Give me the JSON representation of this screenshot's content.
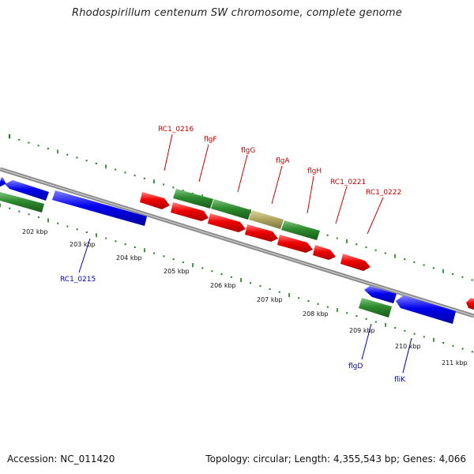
{
  "title": "Rhodospirillum centenum SW chromosome, complete genome",
  "footer": {
    "accession": "Accession: NC_011420",
    "summary": "Topology: circular; Length: 4,355,543 bp; Genes: 4,066"
  },
  "colors": {
    "forward_label": "#cc0000",
    "reverse_label": "#0000bb",
    "gene_red": "#ee0000",
    "gene_green": "#2d8a2d",
    "gene_blue": "#0000ee",
    "gene_olive": "#b0a860",
    "backbone": "#8a8a8a",
    "tick_green": "#1d7a1d"
  },
  "kbp_labels": [
    "202 kbp",
    "203 kbp",
    "204 kbp",
    "205 kbp",
    "206 kbp",
    "207 kbp",
    "208 kbp",
    "209 kbp",
    "210 kbp",
    "211 kbp"
  ],
  "forward_labels": [
    "RC1_0216",
    "flgF",
    "flgG",
    "flgA",
    "flgH",
    "RC1_0221",
    "RC1_0222"
  ],
  "reverse_labels": [
    "RC1_0215",
    "flgD",
    "fliK"
  ]
}
